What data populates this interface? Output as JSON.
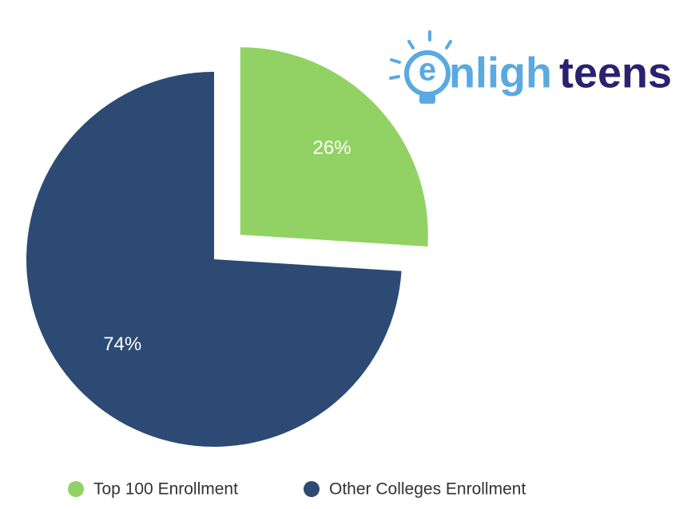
{
  "chart_data": {
    "type": "pie",
    "categories": [
      "Top 100 Enrollment",
      "Other Colleges Enrollment"
    ],
    "values": [
      26,
      74
    ],
    "value_labels": [
      "26%",
      "74%"
    ],
    "colors": [
      "#92d264",
      "#2c4a74"
    ],
    "explode": [
      true,
      false
    ],
    "legend": "bottom"
  },
  "logo": {
    "parts": [
      "e",
      "nligh",
      "teens"
    ]
  }
}
